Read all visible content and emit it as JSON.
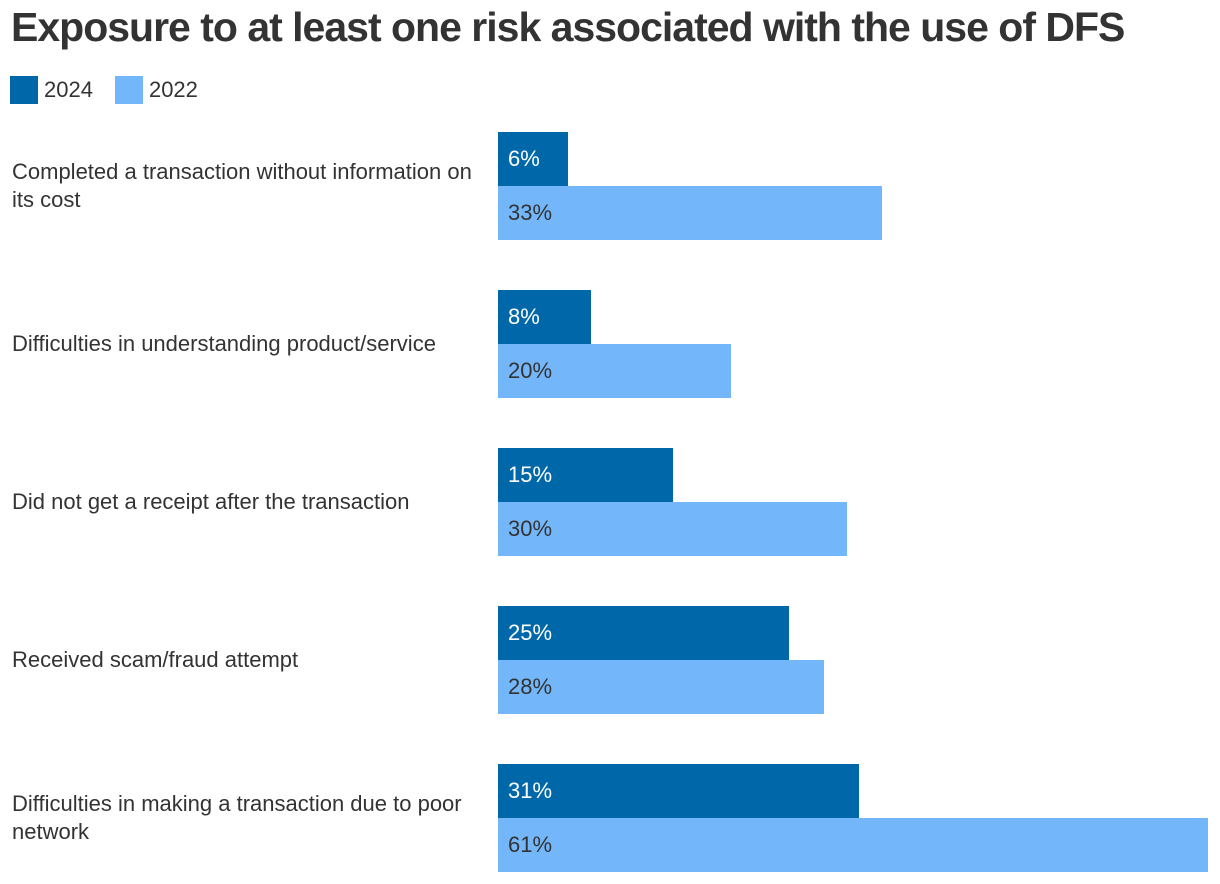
{
  "chart_data": {
    "type": "bar",
    "orientation": "horizontal",
    "title": "Exposure to at least one risk associated with the use of DFS",
    "categories": [
      "Completed a transaction without information on its cost",
      "Difficulties in understanding product/service",
      "Did not get a receipt after the transaction",
      "Received scam/fraud attempt",
      "Difficulties in making a transaction due to poor network"
    ],
    "series": [
      {
        "name": "2024",
        "color": "#0068a8",
        "label_color": "#ffffff",
        "values": [
          6,
          8,
          15,
          25,
          31
        ],
        "labels": [
          "6%",
          "8%",
          "15%",
          "25%",
          "31%"
        ]
      },
      {
        "name": "2022",
        "color": "#73b6f9",
        "label_color": "#333333",
        "values": [
          33,
          20,
          30,
          28,
          61
        ],
        "labels": [
          "33%",
          "20%",
          "30%",
          "28%",
          "61%"
        ]
      }
    ],
    "xlabel": "",
    "ylabel": "",
    "xlim": [
      0,
      61
    ],
    "unit": "%",
    "legend": "top-left",
    "grid": false
  }
}
